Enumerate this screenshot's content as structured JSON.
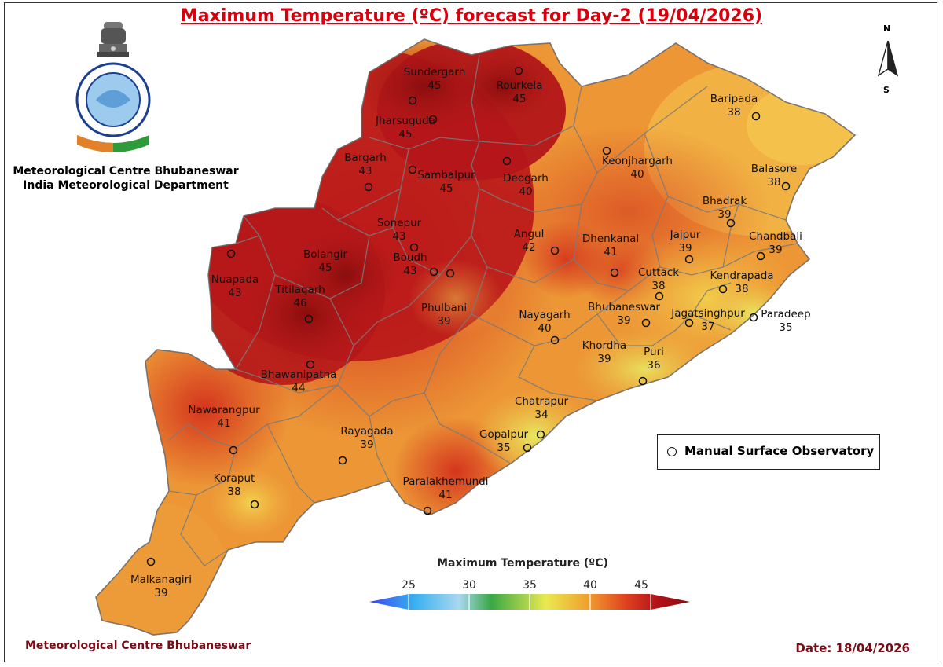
{
  "header": {
    "title": "Maximum Temperature (ºC) forecast for Day-2 (19/04/2026)",
    "org_line1": "Meteorological Centre Bhubaneswar",
    "org_line2": "India Meteorological Department"
  },
  "footer": {
    "left": "Meteorological Centre Bhubaneswar",
    "right": "Date: 18/04/2026"
  },
  "legend": {
    "station_marker_label": "Manual Surface Observatory"
  },
  "colorbar": {
    "title": "Maximum Temperature (ºC)",
    "ticks": [
      "25",
      "30",
      "35",
      "40",
      "45"
    ],
    "colors": [
      "#3b46f0",
      "#38b0f0",
      "#a8d8f0",
      "#39a845",
      "#e9ea50",
      "#f0a030",
      "#e0421f",
      "#b01218",
      "#8a0d0d"
    ]
  },
  "north_arrow": {
    "n": "N",
    "s": "S"
  },
  "places": [
    {
      "name": "Sundergarh",
      "temp": "45"
    },
    {
      "name": "Rourkela",
      "temp": "45"
    },
    {
      "name": "Jharsuguda",
      "temp": "45"
    },
    {
      "name": "Bargarh",
      "temp": "43"
    },
    {
      "name": "Sambalpur",
      "temp": "45"
    },
    {
      "name": "Deogarh",
      "temp": "40"
    },
    {
      "name": "Keonjhargarh",
      "temp": "40"
    },
    {
      "name": "Baripada",
      "temp": "38"
    },
    {
      "name": "Balasore",
      "temp": "38"
    },
    {
      "name": "Bhadrak",
      "temp": "39"
    },
    {
      "name": "Chandbali",
      "temp": "39"
    },
    {
      "name": "Sonepur",
      "temp": "43"
    },
    {
      "name": "Angul",
      "temp": "42"
    },
    {
      "name": "Dhenkanal",
      "temp": "41"
    },
    {
      "name": "Jajpur",
      "temp": "39"
    },
    {
      "name": "Kendrapada",
      "temp": "38"
    },
    {
      "name": "Cuttack",
      "temp": "38"
    },
    {
      "name": "Nuapada",
      "temp": "43"
    },
    {
      "name": "Bolangir",
      "temp": "45"
    },
    {
      "name": "Boudh",
      "temp": "43"
    },
    {
      "name": "Titilagarh",
      "temp": "46"
    },
    {
      "name": "Phulbani",
      "temp": "39"
    },
    {
      "name": "Nayagarh",
      "temp": "40"
    },
    {
      "name": "Bhubaneswar",
      "temp": "39"
    },
    {
      "name": "Jagatsinghpur",
      "temp": "37"
    },
    {
      "name": "Paradeep",
      "temp": "35"
    },
    {
      "name": "Khordha",
      "temp": "39"
    },
    {
      "name": "Puri",
      "temp": "36"
    },
    {
      "name": "Bhawanipatna",
      "temp": "44"
    },
    {
      "name": "Nawarangpur",
      "temp": "41"
    },
    {
      "name": "Chatrapur",
      "temp": "34"
    },
    {
      "name": "Rayagada",
      "temp": "39"
    },
    {
      "name": "Gopalpur",
      "temp": "35"
    },
    {
      "name": "Koraput",
      "temp": "38"
    },
    {
      "name": "Paralakhemundi",
      "temp": "41"
    },
    {
      "name": "Malkanagiri",
      "temp": "39"
    }
  ]
}
